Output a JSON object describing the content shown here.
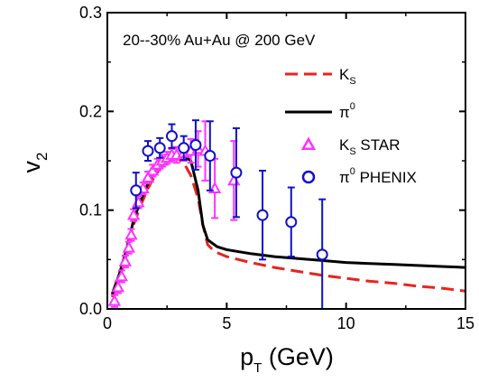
{
  "chart_data": {
    "type": "scatter",
    "annotation": "20--30% Au+Au @ 200 GeV",
    "xlabel": {
      "main": "p",
      "sub": "T",
      "rest": " (GeV)"
    },
    "ylabel": {
      "main": "v",
      "sub": "2"
    },
    "xlim": [
      0,
      15
    ],
    "ylim": [
      0,
      0.3
    ],
    "xticks": [
      0,
      5,
      10,
      15
    ],
    "xtick_labels": [
      "0",
      "5",
      "10",
      "15"
    ],
    "yticks": [
      0.0,
      0.1,
      0.2,
      0.3
    ],
    "ytick_labels": [
      "0.0",
      "0.1",
      "0.2",
      "0.3"
    ],
    "grid": false,
    "legend_position": "top-right",
    "legend": [
      {
        "main": "K",
        "sub": "S",
        "sup": "",
        "rest": ""
      },
      {
        "main": "π",
        "sub": "",
        "sup": "0",
        "rest": ""
      },
      {
        "main": "K",
        "sub": "S",
        "sup": "",
        "rest": " STAR"
      },
      {
        "main": "π",
        "sub": "",
        "sup": "0",
        "rest": " PHENIX"
      }
    ],
    "colors": {
      "ks_line": "#e8231f",
      "pi0_line": "#000000",
      "ks_star": "#ff33ff",
      "pi0_phenix": "#1010cc"
    },
    "series": [
      {
        "style": "line-dashed",
        "points": [
          [
            0.2,
            0.012
          ],
          [
            0.5,
            0.03
          ],
          [
            0.8,
            0.055
          ],
          [
            1.1,
            0.085
          ],
          [
            1.4,
            0.105
          ],
          [
            1.7,
            0.122
          ],
          [
            2.0,
            0.135
          ],
          [
            2.3,
            0.145
          ],
          [
            2.6,
            0.151
          ],
          [
            2.9,
            0.153
          ],
          [
            3.2,
            0.148
          ],
          [
            3.5,
            0.135
          ],
          [
            3.8,
            0.112
          ],
          [
            4.0,
            0.085
          ],
          [
            4.2,
            0.065
          ],
          [
            4.5,
            0.058
          ],
          [
            5.0,
            0.053
          ],
          [
            6.0,
            0.047
          ],
          [
            7.0,
            0.042
          ],
          [
            8.0,
            0.038
          ],
          [
            9.0,
            0.034
          ],
          [
            10.0,
            0.031
          ],
          [
            11.0,
            0.028
          ],
          [
            12.0,
            0.026
          ],
          [
            13.0,
            0.023
          ],
          [
            14.0,
            0.021
          ],
          [
            15.0,
            0.018
          ]
        ]
      },
      {
        "style": "line-solid",
        "points": [
          [
            0.2,
            0.015
          ],
          [
            0.5,
            0.035
          ],
          [
            0.8,
            0.06
          ],
          [
            1.1,
            0.09
          ],
          [
            1.4,
            0.11
          ],
          [
            1.7,
            0.127
          ],
          [
            2.0,
            0.14
          ],
          [
            2.3,
            0.148
          ],
          [
            2.6,
            0.153
          ],
          [
            2.9,
            0.155
          ],
          [
            3.2,
            0.155
          ],
          [
            3.5,
            0.15
          ],
          [
            3.8,
            0.12
          ],
          [
            4.0,
            0.085
          ],
          [
            4.2,
            0.07
          ],
          [
            4.6,
            0.063
          ],
          [
            5.0,
            0.06
          ],
          [
            6.0,
            0.056
          ],
          [
            7.0,
            0.053
          ],
          [
            8.0,
            0.051
          ],
          [
            9.0,
            0.049
          ],
          [
            10.0,
            0.047
          ],
          [
            11.0,
            0.046
          ],
          [
            12.0,
            0.045
          ],
          [
            13.0,
            0.044
          ],
          [
            14.0,
            0.043
          ],
          [
            15.0,
            0.042
          ]
        ]
      },
      {
        "style": "triangle",
        "points": [
          {
            "x": 0.3,
            "y": 0.008,
            "err": 0.006
          },
          {
            "x": 0.45,
            "y": 0.022,
            "err": 0.006
          },
          {
            "x": 0.6,
            "y": 0.033,
            "err": 0.006
          },
          {
            "x": 0.75,
            "y": 0.048,
            "err": 0.006
          },
          {
            "x": 0.9,
            "y": 0.062,
            "err": 0.006
          },
          {
            "x": 1.0,
            "y": 0.075,
            "err": 0.006
          },
          {
            "x": 1.1,
            "y": 0.095,
            "err": 0.006
          },
          {
            "x": 1.3,
            "y": 0.108,
            "err": 0.006
          },
          {
            "x": 1.5,
            "y": 0.122,
            "err": 0.006
          },
          {
            "x": 1.7,
            "y": 0.133,
            "err": 0.006
          },
          {
            "x": 1.9,
            "y": 0.14,
            "err": 0.006
          },
          {
            "x": 2.1,
            "y": 0.146,
            "err": 0.006
          },
          {
            "x": 2.3,
            "y": 0.15,
            "err": 0.006
          },
          {
            "x": 2.5,
            "y": 0.153,
            "err": 0.006
          },
          {
            "x": 2.7,
            "y": 0.156,
            "err": 0.006
          },
          {
            "x": 2.9,
            "y": 0.156,
            "err": 0.008
          },
          {
            "x": 3.2,
            "y": 0.158,
            "err": 0.008
          },
          {
            "x": 3.5,
            "y": 0.16,
            "err": 0.012
          },
          {
            "x": 3.8,
            "y": 0.162,
            "err": 0.018
          },
          {
            "x": 4.1,
            "y": 0.16,
            "err": 0.03
          },
          {
            "x": 4.5,
            "y": 0.122,
            "err": 0.03
          },
          {
            "x": 5.3,
            "y": 0.13,
            "err": 0.04
          }
        ]
      },
      {
        "style": "circle",
        "points": [
          {
            "x": 1.2,
            "y": 0.12,
            "err": 0.018
          },
          {
            "x": 1.7,
            "y": 0.16,
            "err": 0.01
          },
          {
            "x": 2.2,
            "y": 0.163,
            "err": 0.01
          },
          {
            "x": 2.7,
            "y": 0.175,
            "err": 0.012
          },
          {
            "x": 3.2,
            "y": 0.163,
            "err": 0.012
          },
          {
            "x": 3.7,
            "y": 0.166,
            "err": 0.025
          },
          {
            "x": 4.3,
            "y": 0.155,
            "err": 0.035
          },
          {
            "x": 5.4,
            "y": 0.138,
            "err": 0.045
          },
          {
            "x": 6.5,
            "y": 0.095,
            "err": 0.045
          },
          {
            "x": 7.7,
            "y": 0.088,
            "err": 0.035
          },
          {
            "x": 9.0,
            "y": 0.055,
            "err": 0.056
          }
        ]
      }
    ]
  }
}
